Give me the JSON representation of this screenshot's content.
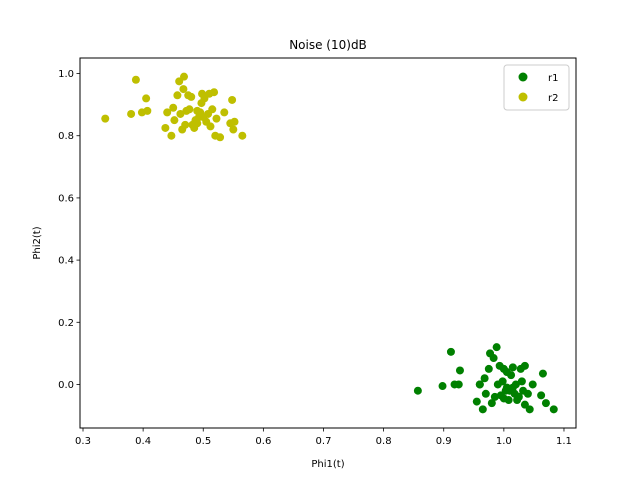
{
  "chart_data": {
    "type": "scatter",
    "title": "Noise (10)dB",
    "xlabel": "Phi1(t)",
    "ylabel": "Phi2(t)",
    "xlim": [
      0.295,
      1.12
    ],
    "ylim": [
      -0.14,
      1.05
    ],
    "xticks": [
      "0.3",
      "0.4",
      "0.5",
      "0.6",
      "0.7",
      "0.8",
      "0.9",
      "1.0",
      "1.1"
    ],
    "yticks": [
      "0.0",
      "0.2",
      "0.4",
      "0.6",
      "0.8",
      "1.0"
    ],
    "grid": false,
    "legend_position": "top-right",
    "series": [
      {
        "name": "r1",
        "color": "#008000",
        "points": [
          [
            0.857,
            -0.02
          ],
          [
            0.898,
            -0.005
          ],
          [
            0.912,
            0.105
          ],
          [
            0.918,
            0.0
          ],
          [
            0.925,
            0.0
          ],
          [
            0.927,
            0.045
          ],
          [
            0.955,
            -0.055
          ],
          [
            0.96,
            0.0
          ],
          [
            0.965,
            -0.08
          ],
          [
            0.968,
            0.02
          ],
          [
            0.97,
            -0.03
          ],
          [
            0.975,
            0.05
          ],
          [
            0.977,
            0.1
          ],
          [
            0.98,
            -0.06
          ],
          [
            0.983,
            0.085
          ],
          [
            0.985,
            -0.04
          ],
          [
            0.988,
            0.12
          ],
          [
            0.99,
            0.0
          ],
          [
            0.993,
            0.06
          ],
          [
            0.995,
            -0.035
          ],
          [
            0.998,
            0.01
          ],
          [
            1.0,
            -0.045
          ],
          [
            1.003,
            -0.02
          ],
          [
            1.005,
            0.04
          ],
          [
            1.008,
            -0.05
          ],
          [
            1.01,
            -0.02
          ],
          [
            1.012,
            0.03
          ],
          [
            1.015,
            0.055
          ],
          [
            1.015,
            -0.01
          ],
          [
            1.018,
            -0.03
          ],
          [
            1.02,
            0.0
          ],
          [
            1.025,
            -0.04
          ],
          [
            1.028,
            0.05
          ],
          [
            1.03,
            0.01
          ],
          [
            1.032,
            -0.02
          ],
          [
            1.035,
            0.06
          ],
          [
            1.035,
            -0.065
          ],
          [
            1.04,
            -0.03
          ],
          [
            1.043,
            -0.08
          ],
          [
            1.048,
            0.0
          ],
          [
            1.062,
            -0.035
          ],
          [
            1.065,
            0.035
          ],
          [
            1.07,
            -0.06
          ],
          [
            1.083,
            -0.08
          ],
          [
            1.0,
            0.05
          ],
          [
            0.96,
            0.0
          ],
          [
            1.005,
            -0.01
          ],
          [
            1.022,
            -0.05
          ]
        ]
      },
      {
        "name": "r2",
        "color": "#bfbf00",
        "points": [
          [
            0.337,
            0.855
          ],
          [
            0.38,
            0.87
          ],
          [
            0.388,
            0.98
          ],
          [
            0.398,
            0.875
          ],
          [
            0.405,
            0.92
          ],
          [
            0.407,
            0.88
          ],
          [
            0.437,
            0.825
          ],
          [
            0.44,
            0.875
          ],
          [
            0.447,
            0.8
          ],
          [
            0.45,
            0.89
          ],
          [
            0.452,
            0.85
          ],
          [
            0.457,
            0.93
          ],
          [
            0.46,
            0.975
          ],
          [
            0.462,
            0.87
          ],
          [
            0.465,
            0.82
          ],
          [
            0.467,
            0.95
          ],
          [
            0.468,
            0.99
          ],
          [
            0.47,
            0.835
          ],
          [
            0.472,
            0.88
          ],
          [
            0.475,
            0.93
          ],
          [
            0.477,
            0.885
          ],
          [
            0.48,
            0.925
          ],
          [
            0.482,
            0.835
          ],
          [
            0.485,
            0.825
          ],
          [
            0.487,
            0.85
          ],
          [
            0.49,
            0.84
          ],
          [
            0.493,
            0.86
          ],
          [
            0.495,
            0.875
          ],
          [
            0.497,
            0.905
          ],
          [
            0.498,
            0.935
          ],
          [
            0.5,
            0.86
          ],
          [
            0.502,
            0.92
          ],
          [
            0.505,
            0.845
          ],
          [
            0.508,
            0.87
          ],
          [
            0.51,
            0.935
          ],
          [
            0.512,
            0.83
          ],
          [
            0.515,
            0.885
          ],
          [
            0.518,
            0.94
          ],
          [
            0.52,
            0.8
          ],
          [
            0.522,
            0.855
          ],
          [
            0.528,
            0.795
          ],
          [
            0.535,
            0.875
          ],
          [
            0.545,
            0.84
          ],
          [
            0.548,
            0.915
          ],
          [
            0.55,
            0.82
          ],
          [
            0.552,
            0.845
          ],
          [
            0.565,
            0.8
          ],
          [
            0.49,
            0.88
          ]
        ]
      }
    ]
  }
}
